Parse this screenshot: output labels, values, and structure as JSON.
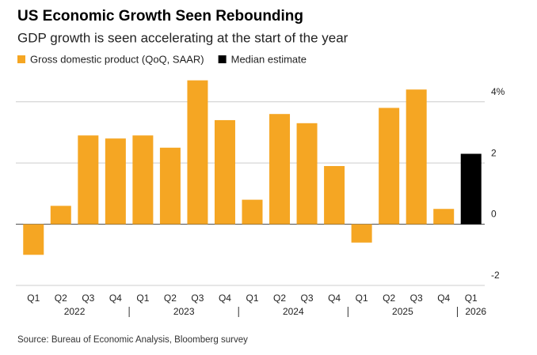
{
  "chart_data": {
    "type": "bar",
    "title": "US Economic Growth Seen Rebounding",
    "subtitle": "GDP growth is seen accelerating at the start of the year",
    "source": "Source: Bureau of Economic Analysis, Bloomberg survey",
    "categories": [
      "Q1",
      "Q2",
      "Q3",
      "Q4",
      "Q1",
      "Q2",
      "Q3",
      "Q4",
      "Q1",
      "Q2",
      "Q3",
      "Q4",
      "Q1",
      "Q2",
      "Q3",
      "Q4",
      "Q1"
    ],
    "years": [
      "2022",
      "2023",
      "2024",
      "2025",
      "2026"
    ],
    "series": [
      {
        "name": "Gross domestic product (QoQ, SAAR)",
        "color": "#f5a623",
        "values": [
          -1.0,
          0.6,
          2.9,
          2.8,
          2.9,
          2.5,
          4.7,
          3.4,
          0.8,
          3.6,
          3.3,
          1.9,
          -0.6,
          3.8,
          4.4,
          0.5,
          null
        ]
      },
      {
        "name": "Median estimate",
        "color": "#000000",
        "values": [
          null,
          null,
          null,
          null,
          null,
          null,
          null,
          null,
          null,
          null,
          null,
          null,
          null,
          null,
          null,
          null,
          2.3
        ]
      }
    ],
    "ylim": [
      -2,
      5
    ],
    "yticks": [
      -2,
      0,
      2,
      {
        "value": 4,
        "label": "4%"
      }
    ],
    "grid": true
  }
}
